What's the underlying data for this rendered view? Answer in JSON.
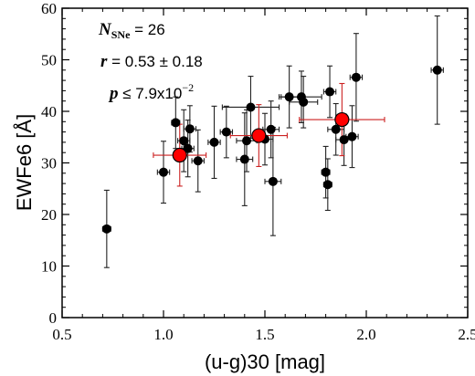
{
  "chart_data": {
    "type": "scatter",
    "xlabel": "(u-g)30 [mag]",
    "ylabel": "EWFe6 [Å]",
    "xlim": [
      0.5,
      2.5
    ],
    "ylim": [
      0,
      60
    ],
    "x_ticks": [
      "0.5",
      "1.0",
      "1.5",
      "2.0",
      "2.5"
    ],
    "y_ticks": [
      "0",
      "10",
      "20",
      "30",
      "40",
      "50",
      "60"
    ],
    "grid": false,
    "annotations": {
      "n_label": "N",
      "n_sub": "SNe",
      "n_value": " = 26",
      "r_label": "r",
      "r_value": " = 0.53 ± 0.18",
      "p_label": "p",
      "p_value": " ≤ 7.9x10",
      "p_exponent": "−2"
    },
    "series": [
      {
        "color": "#000000",
        "marker": "circle",
        "points": [
          {
            "x": 0.72,
            "y": 17.2,
            "xerr": 0.02,
            "yerr": 7.5
          },
          {
            "x": 1.0,
            "y": 28.2,
            "xerr": 0.03,
            "yerr": 6.0
          },
          {
            "x": 1.06,
            "y": 37.8,
            "xerr": 0.02,
            "yerr": 5.0
          },
          {
            "x": 1.1,
            "y": 34.3,
            "xerr": 0.03,
            "yerr": 6.0
          },
          {
            "x": 1.12,
            "y": 32.8,
            "xerr": 0.03,
            "yerr": 5.5
          },
          {
            "x": 1.13,
            "y": 36.6,
            "xerr": 0.03,
            "yerr": 4.5
          },
          {
            "x": 1.17,
            "y": 30.4,
            "xerr": 0.03,
            "yerr": 6.0
          },
          {
            "x": 1.25,
            "y": 34.0,
            "xerr": 0.03,
            "yerr": 7.0
          },
          {
            "x": 1.31,
            "y": 36.0,
            "xerr": 0.03,
            "yerr": 5.0
          },
          {
            "x": 1.4,
            "y": 30.7,
            "xerr": 0.04,
            "yerr": 9.0
          },
          {
            "x": 1.41,
            "y": 34.3,
            "xerr": 0.05,
            "yerr": 6.0
          },
          {
            "x": 1.43,
            "y": 40.8,
            "xerr": 0.14,
            "yerr": 6.0
          },
          {
            "x": 1.5,
            "y": 34.6,
            "xerr": 0.04,
            "yerr": 5.0
          },
          {
            "x": 1.53,
            "y": 36.5,
            "xerr": 0.04,
            "yerr": 5.5
          },
          {
            "x": 1.54,
            "y": 26.4,
            "xerr": 0.04,
            "yerr": 10.5
          },
          {
            "x": 1.62,
            "y": 42.8,
            "xerr": 0.05,
            "yerr": 6.0
          },
          {
            "x": 1.68,
            "y": 42.8,
            "xerr": 0.1,
            "yerr": 5.0
          },
          {
            "x": 1.69,
            "y": 41.8,
            "xerr": 0.07,
            "yerr": 5.0
          },
          {
            "x": 1.8,
            "y": 28.2,
            "xerr": 0.02,
            "yerr": 5.0
          },
          {
            "x": 1.81,
            "y": 25.8,
            "xerr": 0.02,
            "yerr": 5.0
          },
          {
            "x": 1.82,
            "y": 43.8,
            "xerr": 0.03,
            "yerr": 5.0
          },
          {
            "x": 1.85,
            "y": 36.5,
            "xerr": 0.04,
            "yerr": 5.0
          },
          {
            "x": 1.89,
            "y": 34.5,
            "xerr": 0.04,
            "yerr": 5.0
          },
          {
            "x": 1.93,
            "y": 35.1,
            "xerr": 0.03,
            "yerr": 6.0
          },
          {
            "x": 1.95,
            "y": 46.6,
            "xerr": 0.03,
            "yerr": 8.5
          },
          {
            "x": 2.35,
            "y": 48.0,
            "xerr": 0.03,
            "yerr": 10.5
          }
        ]
      },
      {
        "color": "#ff0000",
        "marker": "circle-large",
        "points": [
          {
            "x": 1.08,
            "y": 31.5,
            "xerr": 0.13,
            "yerr": 6.0
          },
          {
            "x": 1.47,
            "y": 35.3,
            "xerr": 0.14,
            "yerr": 6.0
          },
          {
            "x": 1.88,
            "y": 38.4,
            "xerr": 0.21,
            "yerr": 7.0
          }
        ]
      }
    ]
  }
}
